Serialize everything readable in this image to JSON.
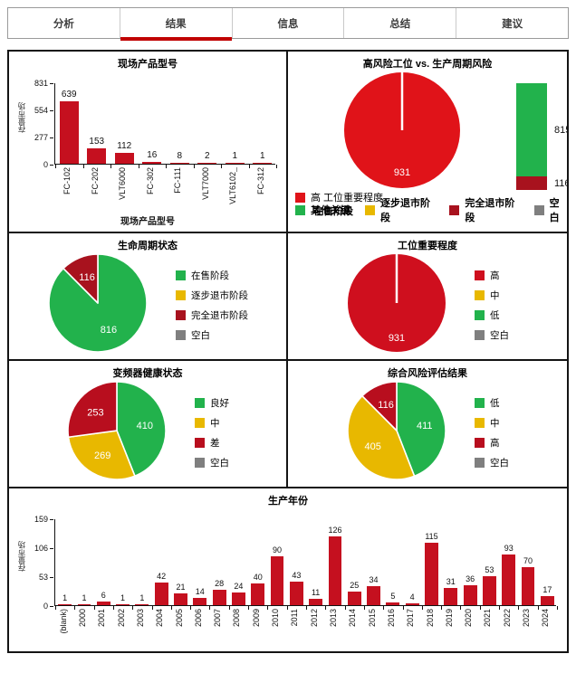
{
  "tabs": [
    {
      "label": "分析",
      "active": false
    },
    {
      "label": "结果",
      "active": true
    },
    {
      "label": "信息",
      "active": false
    },
    {
      "label": "总结",
      "active": false
    },
    {
      "label": "建议",
      "active": false
    }
  ],
  "colors": {
    "accent_red": "#C00000",
    "pie_red": "#E01319",
    "bar_red": "#C5101F",
    "dark_red": "#A8121E",
    "green": "#22B24C",
    "yellow": "#E8B800",
    "gray": "#7F7F7F"
  },
  "chart_data": [
    {
      "id": "product_model",
      "type": "bar",
      "title": "现场产品型号",
      "xlabel": "现场产品型号",
      "ylabel": "存量市场",
      "ylim": [
        0,
        831
      ],
      "yticks": [
        0,
        277,
        554,
        831
      ],
      "categories": [
        "FC-102",
        "FC-202",
        "VLT6000",
        "FC-302",
        "FC-111",
        "VLT7000",
        "VLT6102_",
        "FC-312"
      ],
      "values": [
        639,
        153,
        112,
        16,
        8,
        2,
        1,
        1
      ],
      "bar_color": "#C5101F",
      "grid": false,
      "legend": "none"
    },
    {
      "id": "high_risk_vs_lifecycle_risk",
      "type": "pie+stacked-bar",
      "title": "高风险工位 vs. 生产周期风险",
      "pie": {
        "slices": [
          {
            "label": "高 工位重要程度",
            "value": 931,
            "color": "#E01319"
          }
        ],
        "value_label": "931",
        "gap_line": true
      },
      "stacked_bar": {
        "segments": [
          {
            "label": "815",
            "value": 815,
            "color": "#22B24C"
          },
          {
            "label": "116",
            "value": 116,
            "color": "#A8121E"
          }
        ]
      },
      "legend_rows": [
        [
          {
            "color": "#E01319",
            "label": "高 工位重要程度"
          }
        ],
        [
          {
            "color": "#22B24C",
            "label": "其他关键",
            "overlay": "在售阶段"
          },
          {
            "color": "#E8B800",
            "label": "逐步退市阶段"
          },
          {
            "color": "#A8121E",
            "label": "完全退市阶段"
          },
          {
            "color": "#7F7F7F",
            "label": "空白"
          }
        ]
      ]
    },
    {
      "id": "lifecycle_status",
      "type": "pie",
      "title": "生命周期状态",
      "legend_position": "right",
      "slices": [
        {
          "label": "在售阶段",
          "value": 816,
          "color": "#22B24C"
        },
        {
          "label": "逐步退市阶段",
          "value": 0,
          "color": "#E8B800"
        },
        {
          "label": "完全退市阶段",
          "value": 116,
          "color": "#A8121E"
        },
        {
          "label": "空白",
          "value": 0,
          "color": "#7F7F7F"
        }
      ]
    },
    {
      "id": "station_importance",
      "type": "pie",
      "title": "工位重要程度",
      "legend_position": "right",
      "gap_line": true,
      "slices": [
        {
          "label": "高",
          "value": 931,
          "color": "#CF0F1E"
        },
        {
          "label": "中",
          "value": 0,
          "color": "#E8B800"
        },
        {
          "label": "低",
          "value": 0,
          "color": "#22B24C"
        },
        {
          "label": "空白",
          "value": 0,
          "color": "#7F7F7F"
        }
      ]
    },
    {
      "id": "inverter_health",
      "type": "pie",
      "title": "变频器健康状态",
      "legend_position": "right",
      "slices": [
        {
          "label": "良好",
          "value": 410,
          "color": "#22B24C"
        },
        {
          "label": "中",
          "value": 269,
          "color": "#E8B800"
        },
        {
          "label": "差",
          "value": 253,
          "color": "#B80E1E"
        },
        {
          "label": "空白",
          "value": 0,
          "color": "#7F7F7F"
        }
      ]
    },
    {
      "id": "overall_risk_result",
      "type": "pie",
      "title": "综合风险评估结果",
      "legend_position": "right",
      "slices": [
        {
          "label": "低",
          "value": 411,
          "color": "#22B24C"
        },
        {
          "label": "中",
          "value": 405,
          "color": "#E8B800"
        },
        {
          "label": "高",
          "value": 116,
          "color": "#B80E1E"
        },
        {
          "label": "空白",
          "value": 0,
          "color": "#7F7F7F"
        }
      ]
    },
    {
      "id": "production_year",
      "type": "bar",
      "title": "生产年份",
      "xlabel": "",
      "ylabel": "存量市场",
      "ylim": [
        0,
        159
      ],
      "yticks": [
        0,
        53,
        106,
        159
      ],
      "categories": [
        "(blank)",
        "2000",
        "2001",
        "2002",
        "2003",
        "2004",
        "2005",
        "2006",
        "2007",
        "2008",
        "2009",
        "2010",
        "2011",
        "2012",
        "2013",
        "2014",
        "2015",
        "2016",
        "2017",
        "2018",
        "2019",
        "2020",
        "2021",
        "2022",
        "2023",
        "2024"
      ],
      "values": [
        1,
        1,
        6,
        1,
        1,
        42,
        21,
        14,
        28,
        24,
        40,
        90,
        43,
        11,
        126,
        25,
        34,
        5,
        4,
        115,
        31,
        36,
        53,
        93,
        70,
        17
      ],
      "bar_color": "#C5101F",
      "grid": false,
      "legend": "none"
    }
  ]
}
